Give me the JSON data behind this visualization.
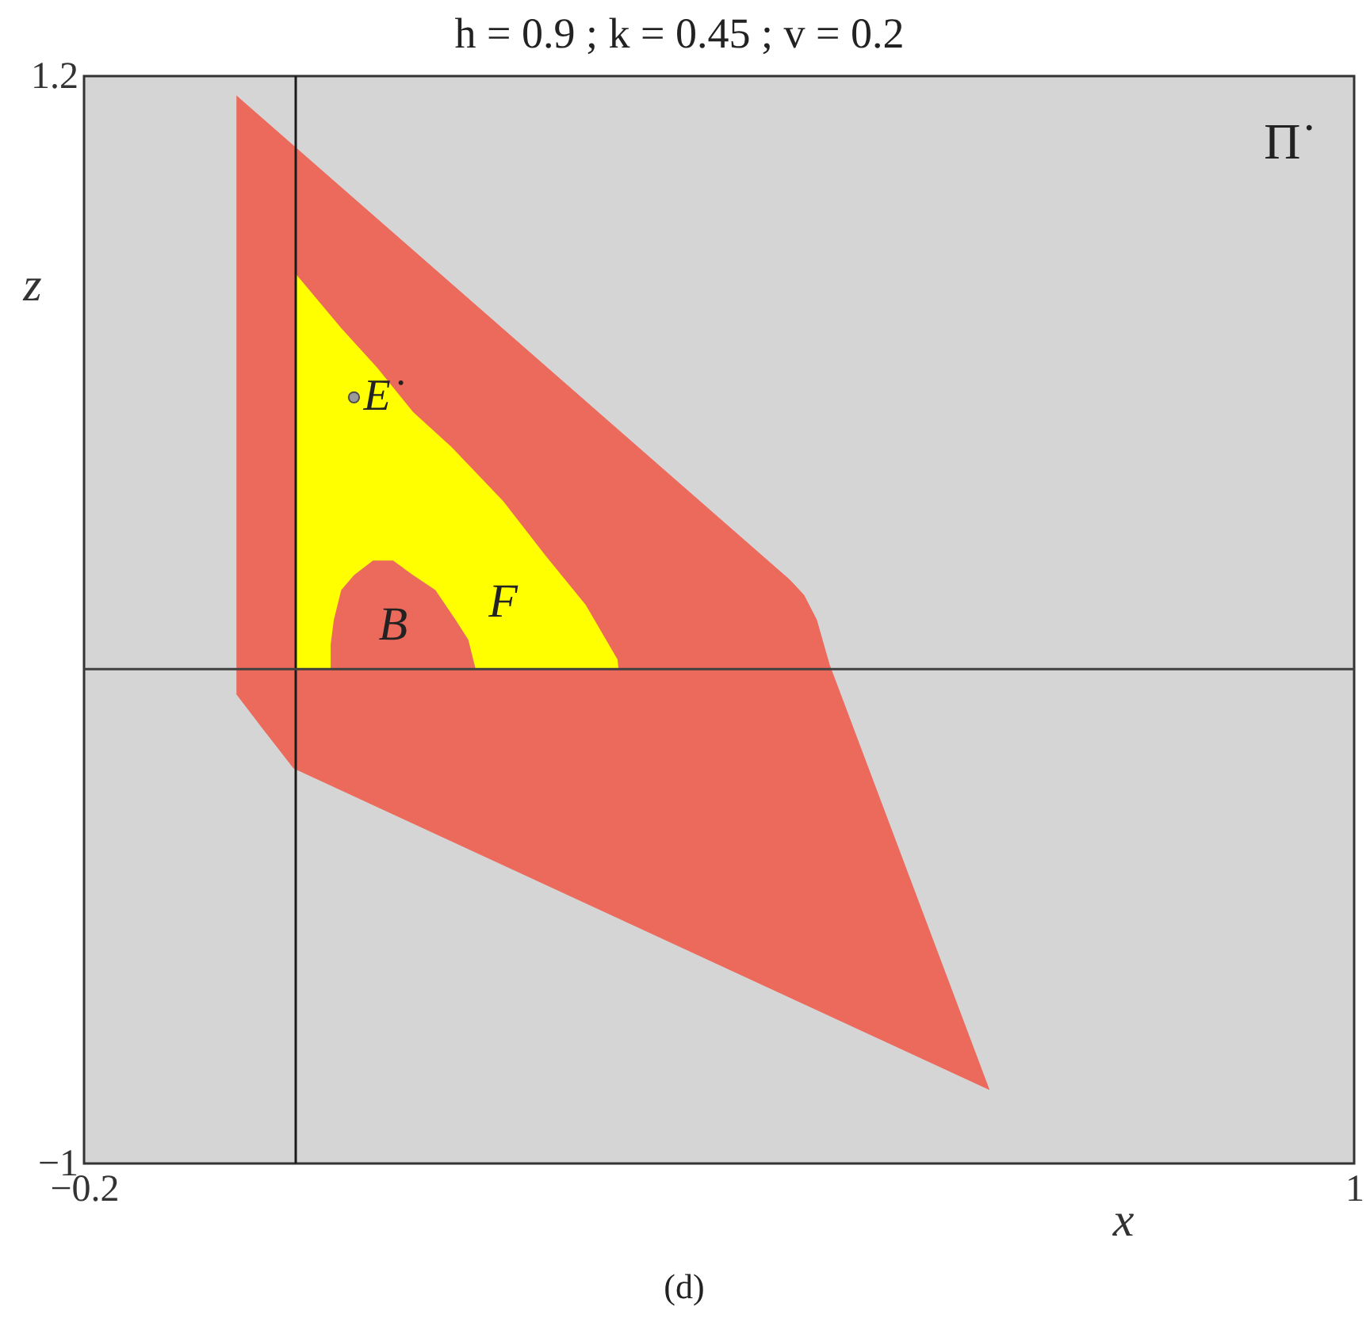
{
  "chart_data": {
    "type": "area",
    "title": "h = 0.9 ; k = 0.45 ; v = 0.2",
    "xlabel": "x",
    "ylabel": "z",
    "xlim": [
      -0.2,
      1
    ],
    "ylim": [
      -1,
      1.2
    ],
    "xticks": [
      -0.2,
      1
    ],
    "yticks": [
      -1,
      1.2
    ],
    "series": [
      {
        "color": "#ec6a5c",
        "x": [
          -0.056,
          0.467,
          0.48,
          0.492,
          0.504,
          0.655,
          -0.002,
          -0.031,
          -0.056
        ],
        "values": [
          1.16,
          0.18,
          0.15,
          0.1,
          0.01,
          -0.85,
          -0.2,
          -0.12,
          -0.05
        ]
      },
      {
        "name": "F",
        "color": "#ffff00",
        "x": [
          0,
          0.043,
          0.077,
          0.111,
          0.147,
          0.196,
          0.236,
          0.274,
          0.304,
          0.305
        ],
        "values": [
          0.8,
          0.69,
          0.61,
          0.52,
          0.45,
          0.34,
          0.23,
          0.13,
          0.02,
          0
        ]
      },
      {
        "name": "B",
        "color": "#ec6a5c",
        "x": [
          0.033,
          0.033,
          0.036,
          0.043,
          0.055,
          0.073,
          0.092,
          0.111,
          0.132,
          0.151,
          0.163,
          0.17
        ],
        "values": [
          0,
          0.05,
          0.1,
          0.16,
          0.19,
          0.22,
          0.22,
          0.19,
          0.16,
          0.1,
          0.06,
          0
        ]
      },
      {
        "type": "scatter",
        "name": "E˙",
        "color": "#9a9a9a",
        "marker": "circle",
        "x": [
          0.055
        ],
        "values": [
          0.55
        ]
      }
    ],
    "ref_lines": [
      {
        "axis": "x",
        "value": 0,
        "color": "#1a1a1a"
      },
      {
        "axis": "y",
        "value": 0,
        "color": "#404040"
      }
    ],
    "annotations": [
      "Π˙",
      "(d)"
    ]
  }
}
